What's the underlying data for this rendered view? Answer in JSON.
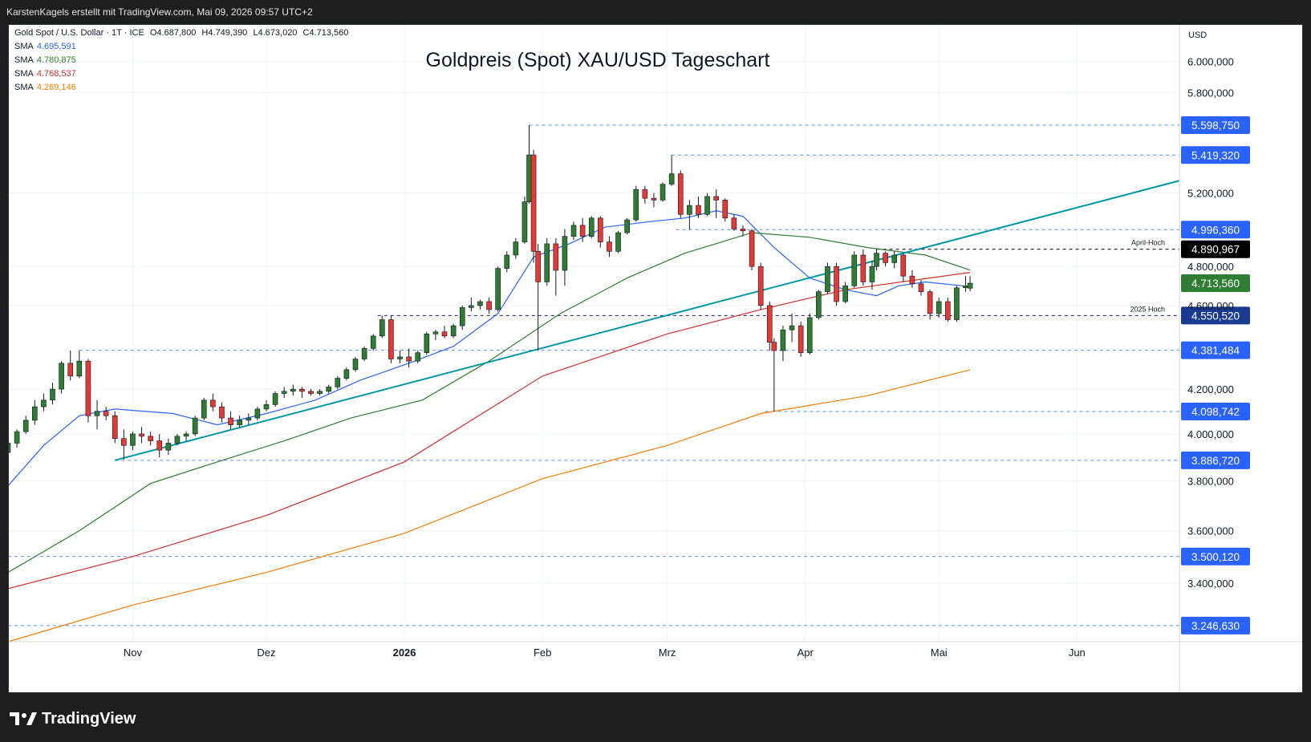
{
  "header": {
    "attribution": "KarstenKagels erstellt mit TradingView.com, Mai 09, 2026 09:57 UTC+2"
  },
  "legend": {
    "symbol_line": "Gold Spot / U.S. Dollar · 1T · ICE",
    "ohlc": {
      "o": "O4.687,800",
      "h": "H4.749,390",
      "l": "L4.673,020",
      "c": "C4.713,560"
    },
    "sma": [
      {
        "label": "SMA",
        "value": "4.695,591",
        "color": "#2962ff"
      },
      {
        "label": "SMA",
        "value": "4.780,875",
        "color": "#2e7d32"
      },
      {
        "label": "SMA",
        "value": "4.768,537",
        "color": "#d32f2f"
      },
      {
        "label": "SMA",
        "value": "4.289,146",
        "color": "#f57c00"
      }
    ]
  },
  "footer": {
    "brand": "TradingView"
  },
  "chart_data": {
    "type": "candlestick",
    "title": "Goldpreis (Spot) XAU/USD Tageschart",
    "currency": "USD",
    "y_scale": "log",
    "ylim": [
      3190,
      6250
    ],
    "y_ticks": [
      {
        "value": 3400,
        "label": "3.400,000"
      },
      {
        "value": 3600,
        "label": "3.600,000"
      },
      {
        "value": 3800,
        "label": "3.800,000"
      },
      {
        "value": 4000,
        "label": "4.000,000"
      },
      {
        "value": 4200,
        "label": "4.200,000"
      },
      {
        "value": 4600,
        "label": "4.600,000"
      },
      {
        "value": 4800,
        "label": "4.800,000"
      },
      {
        "value": 5200,
        "label": "5.200,000"
      },
      {
        "value": 5800,
        "label": "5.800,000"
      },
      {
        "value": 6000,
        "label": "6.000,000"
      }
    ],
    "x_ticks": [
      {
        "date": "2025-11-01",
        "label": "Nov",
        "bold": false
      },
      {
        "date": "2025-12-01",
        "label": "Dez",
        "bold": false
      },
      {
        "date": "2026-01-01",
        "label": "2026",
        "bold": true
      },
      {
        "date": "2026-02-01",
        "label": "Feb",
        "bold": false
      },
      {
        "date": "2026-03-01",
        "label": "Mrz",
        "bold": false
      },
      {
        "date": "2026-04-01",
        "label": "Apr",
        "bold": false
      },
      {
        "date": "2026-05-01",
        "label": "Mai",
        "bold": false
      },
      {
        "date": "2026-06-01",
        "label": "Jun",
        "bold": false
      }
    ],
    "x_range": [
      "2025-10-04",
      "2026-06-24"
    ],
    "levels": [
      {
        "value": 5598.75,
        "label": "5.598,750",
        "style": "blue",
        "start": "2026-01-29"
      },
      {
        "value": 5419.32,
        "label": "5.419,320",
        "style": "blue",
        "start": "2026-03-02"
      },
      {
        "value": 4996.36,
        "label": "4.996,360",
        "style": "blue",
        "start": "2026-03-03"
      },
      {
        "value": 4890.967,
        "label": "4.890,967",
        "style": "black",
        "note": "April-Hoch",
        "start": "2026-04-17"
      },
      {
        "value": 4713.56,
        "label": "4.713,560",
        "style": "green",
        "current": true
      },
      {
        "value": 4550.52,
        "label": "4.550,520",
        "style": "navy",
        "note": "2025 Hoch",
        "start": "2025-12-26"
      },
      {
        "value": 4381.484,
        "label": "4.381,484",
        "style": "blue",
        "start": "2025-10-20"
      },
      {
        "value": 4098.742,
        "label": "4.098,742",
        "style": "blue",
        "start": "2026-03-23"
      },
      {
        "value": 3886.72,
        "label": "3.886,720",
        "style": "blue",
        "start": "2025-10-28"
      },
      {
        "value": 3500.12,
        "label": "3.500,120",
        "style": "blue",
        "start": "2025-10-04"
      },
      {
        "value": 3246.63,
        "label": "3.246,630",
        "style": "blue",
        "start": "2025-10-04"
      }
    ],
    "trendline": {
      "from": {
        "date": "2025-10-28",
        "value": 3886.72
      },
      "to": {
        "date": "2026-06-24",
        "value": 5270
      },
      "color": "#0097a7"
    },
    "sma_lines": [
      {
        "name": "SMA 20",
        "color": "#2962ff",
        "points": [
          [
            "2025-10-04",
            3780
          ],
          [
            "2025-10-12",
            3950
          ],
          [
            "2025-10-20",
            4080
          ],
          [
            "2025-10-28",
            4110
          ],
          [
            "2025-11-10",
            4090
          ],
          [
            "2025-11-20",
            4040
          ],
          [
            "2025-12-01",
            4090
          ],
          [
            "2025-12-12",
            4150
          ],
          [
            "2025-12-22",
            4240
          ],
          [
            "2026-01-02",
            4320
          ],
          [
            "2026-01-12",
            4400
          ],
          [
            "2026-01-22",
            4560
          ],
          [
            "2026-01-30",
            4850
          ],
          [
            "2026-02-07",
            4920
          ],
          [
            "2026-02-15",
            5010
          ],
          [
            "2026-02-25",
            5040
          ],
          [
            "2026-03-05",
            5060
          ],
          [
            "2026-03-12",
            5100
          ],
          [
            "2026-03-18",
            5070
          ],
          [
            "2026-03-25",
            4900
          ],
          [
            "2026-04-02",
            4740
          ],
          [
            "2026-04-10",
            4680
          ],
          [
            "2026-04-17",
            4650
          ],
          [
            "2026-04-22",
            4700
          ],
          [
            "2026-04-28",
            4720
          ],
          [
            "2026-05-08",
            4696
          ]
        ]
      },
      {
        "name": "SMA 50",
        "color": "#2e7d32",
        "points": [
          [
            "2025-10-04",
            3440
          ],
          [
            "2025-10-20",
            3600
          ],
          [
            "2025-11-05",
            3790
          ],
          [
            "2025-11-20",
            3880
          ],
          [
            "2025-12-05",
            3970
          ],
          [
            "2025-12-20",
            4070
          ],
          [
            "2026-01-05",
            4150
          ],
          [
            "2026-01-20",
            4330
          ],
          [
            "2026-02-05",
            4560
          ],
          [
            "2026-02-20",
            4740
          ],
          [
            "2026-03-05",
            4870
          ],
          [
            "2026-03-20",
            4980
          ],
          [
            "2026-04-02",
            4955
          ],
          [
            "2026-04-15",
            4900
          ],
          [
            "2026-04-28",
            4860
          ],
          [
            "2026-05-08",
            4781
          ]
        ]
      },
      {
        "name": "SMA 100",
        "color": "#d32f2f",
        "points": [
          [
            "2025-10-04",
            3380
          ],
          [
            "2025-11-01",
            3500
          ],
          [
            "2025-12-01",
            3660
          ],
          [
            "2026-01-01",
            3880
          ],
          [
            "2026-02-01",
            4260
          ],
          [
            "2026-03-01",
            4460
          ],
          [
            "2026-03-22",
            4580
          ],
          [
            "2026-04-10",
            4680
          ],
          [
            "2026-05-08",
            4769
          ]
        ]
      },
      {
        "name": "SMA 200",
        "color": "#f57c00",
        "points": [
          [
            "2025-10-04",
            3190
          ],
          [
            "2025-11-01",
            3320
          ],
          [
            "2025-12-01",
            3440
          ],
          [
            "2026-01-01",
            3590
          ],
          [
            "2026-02-01",
            3810
          ],
          [
            "2026-03-01",
            3950
          ],
          [
            "2026-03-22",
            4090
          ],
          [
            "2026-04-15",
            4170
          ],
          [
            "2026-05-08",
            4289
          ]
        ]
      }
    ],
    "candles": [
      [
        "2025-10-04",
        3920,
        3980,
        3900,
        3960
      ],
      [
        "2025-10-06",
        3960,
        4020,
        3940,
        4010
      ],
      [
        "2025-10-08",
        4010,
        4080,
        4000,
        4060
      ],
      [
        "2025-10-10",
        4060,
        4150,
        4040,
        4120
      ],
      [
        "2025-10-12",
        4120,
        4180,
        4100,
        4150
      ],
      [
        "2025-10-14",
        4150,
        4230,
        4130,
        4200
      ],
      [
        "2025-10-16",
        4200,
        4330,
        4180,
        4320
      ],
      [
        "2025-10-18",
        4320,
        4380,
        4240,
        4260
      ],
      [
        "2025-10-20",
        4260,
        4380,
        4250,
        4330
      ],
      [
        "2025-10-22",
        4330,
        4340,
        4050,
        4080
      ],
      [
        "2025-10-24",
        4080,
        4150,
        4020,
        4100
      ],
      [
        "2025-10-26",
        4100,
        4120,
        4060,
        4080
      ],
      [
        "2025-10-28",
        4080,
        4100,
        3960,
        3980
      ],
      [
        "2025-10-30",
        3980,
        4020,
        3890,
        3950
      ],
      [
        "2025-11-01",
        3950,
        4010,
        3930,
        4000
      ],
      [
        "2025-11-03",
        4000,
        4030,
        3960,
        3990
      ],
      [
        "2025-11-05",
        3990,
        4010,
        3950,
        3970
      ],
      [
        "2025-11-07",
        3970,
        4000,
        3900,
        3930
      ],
      [
        "2025-11-09",
        3930,
        3980,
        3910,
        3960
      ],
      [
        "2025-11-11",
        3960,
        4000,
        3950,
        3990
      ],
      [
        "2025-11-13",
        3990,
        4010,
        3970,
        4000
      ],
      [
        "2025-11-15",
        4000,
        4080,
        3990,
        4070
      ],
      [
        "2025-11-17",
        4070,
        4160,
        4060,
        4150
      ],
      [
        "2025-11-19",
        4150,
        4180,
        4100,
        4120
      ],
      [
        "2025-11-21",
        4120,
        4140,
        4050,
        4070
      ],
      [
        "2025-11-23",
        4070,
        4100,
        4020,
        4040
      ],
      [
        "2025-11-25",
        4040,
        4080,
        4030,
        4060
      ],
      [
        "2025-11-27",
        4060,
        4090,
        4040,
        4070
      ],
      [
        "2025-11-29",
        4070,
        4120,
        4060,
        4110
      ],
      [
        "2025-12-01",
        4110,
        4150,
        4100,
        4130
      ],
      [
        "2025-12-03",
        4130,
        4190,
        4120,
        4180
      ],
      [
        "2025-12-05",
        4180,
        4210,
        4160,
        4190
      ],
      [
        "2025-12-07",
        4190,
        4220,
        4170,
        4200
      ],
      [
        "2025-12-09",
        4200,
        4210,
        4160,
        4190
      ],
      [
        "2025-12-11",
        4190,
        4200,
        4170,
        4180
      ],
      [
        "2025-12-13",
        4180,
        4200,
        4170,
        4190
      ],
      [
        "2025-12-15",
        4190,
        4220,
        4180,
        4210
      ],
      [
        "2025-12-17",
        4210,
        4260,
        4200,
        4250
      ],
      [
        "2025-12-19",
        4250,
        4300,
        4240,
        4290
      ],
      [
        "2025-12-21",
        4290,
        4350,
        4280,
        4340
      ],
      [
        "2025-12-23",
        4340,
        4400,
        4330,
        4390
      ],
      [
        "2025-12-25",
        4390,
        4460,
        4380,
        4450
      ],
      [
        "2025-12-27",
        4450,
        4550,
        4440,
        4530
      ],
      [
        "2025-12-29",
        4530,
        4550,
        4320,
        4340
      ],
      [
        "2025-12-31",
        4340,
        4380,
        4320,
        4350
      ],
      [
        "2026-01-02",
        4350,
        4390,
        4300,
        4330
      ],
      [
        "2026-01-04",
        4330,
        4380,
        4320,
        4370
      ],
      [
        "2026-01-06",
        4370,
        4470,
        4360,
        4460
      ],
      [
        "2026-01-08",
        4460,
        4480,
        4430,
        4470
      ],
      [
        "2026-01-10",
        4470,
        4500,
        4440,
        4450
      ],
      [
        "2026-01-12",
        4450,
        4510,
        4440,
        4500
      ],
      [
        "2026-01-14",
        4500,
        4600,
        4480,
        4590
      ],
      [
        "2026-01-16",
        4590,
        4640,
        4570,
        4600
      ],
      [
        "2026-01-18",
        4600,
        4630,
        4580,
        4620
      ],
      [
        "2026-01-20",
        4620,
        4640,
        4560,
        4580
      ],
      [
        "2026-01-22",
        4580,
        4800,
        4570,
        4790
      ],
      [
        "2026-01-24",
        4790,
        4880,
        4770,
        4860
      ],
      [
        "2026-01-26",
        4860,
        4950,
        4840,
        4930
      ],
      [
        "2026-01-28",
        4930,
        5180,
        4920,
        5150
      ],
      [
        "2026-01-29",
        5150,
        5598.75,
        5140,
        5420
      ],
      [
        "2026-01-30",
        5420,
        5450,
        4820,
        4880
      ],
      [
        "2026-01-31",
        4880,
        4920,
        4380,
        4720
      ],
      [
        "2026-02-02",
        4720,
        4950,
        4700,
        4920
      ],
      [
        "2026-02-04",
        4920,
        4950,
        4650,
        4780
      ],
      [
        "2026-02-06",
        4780,
        5000,
        4700,
        4960
      ],
      [
        "2026-02-08",
        4960,
        5040,
        4940,
        5020
      ],
      [
        "2026-02-10",
        5020,
        5060,
        4930,
        4960
      ],
      [
        "2026-02-12",
        4960,
        5070,
        4950,
        5060
      ],
      [
        "2026-02-14",
        5060,
        5070,
        4900,
        4930
      ],
      [
        "2026-02-16",
        4930,
        4960,
        4850,
        4880
      ],
      [
        "2026-02-18",
        4880,
        4990,
        4870,
        4980
      ],
      [
        "2026-02-20",
        4980,
        5060,
        4970,
        5050
      ],
      [
        "2026-02-22",
        5050,
        5240,
        5040,
        5220
      ],
      [
        "2026-02-24",
        5220,
        5240,
        5140,
        5170
      ],
      [
        "2026-02-26",
        5170,
        5200,
        5120,
        5160
      ],
      [
        "2026-02-28",
        5160,
        5260,
        5150,
        5250
      ],
      [
        "2026-03-02",
        5250,
        5419.32,
        5240,
        5310
      ],
      [
        "2026-03-04",
        5310,
        5330,
        5060,
        5080
      ],
      [
        "2026-03-06",
        5080,
        5160,
        4996.36,
        5130
      ],
      [
        "2026-03-08",
        5130,
        5180,
        5060,
        5080
      ],
      [
        "2026-03-10",
        5080,
        5200,
        5070,
        5180
      ],
      [
        "2026-03-12",
        5180,
        5220,
        5060,
        5160
      ],
      [
        "2026-03-14",
        5160,
        5170,
        5040,
        5060
      ],
      [
        "2026-03-16",
        5060,
        5080,
        4990,
        5000
      ],
      [
        "2026-03-18",
        5000,
        5020,
        4960,
        4990
      ],
      [
        "2026-03-20",
        4990,
        5000,
        4780,
        4800
      ],
      [
        "2026-03-22",
        4800,
        4820,
        4580,
        4600
      ],
      [
        "2026-03-24",
        4600,
        4620,
        4380,
        4420
      ],
      [
        "2026-03-25",
        4420,
        4440,
        4098.742,
        4380
      ],
      [
        "2026-03-27",
        4380,
        4500,
        4330,
        4480
      ],
      [
        "2026-03-29",
        4480,
        4560,
        4420,
        4500
      ],
      [
        "2026-03-31",
        4500,
        4520,
        4350,
        4370
      ],
      [
        "2026-04-02",
        4370,
        4560,
        4360,
        4540
      ],
      [
        "2026-04-04",
        4540,
        4680,
        4530,
        4670
      ],
      [
        "2026-04-06",
        4670,
        4820,
        4660,
        4800
      ],
      [
        "2026-04-08",
        4800,
        4820,
        4600,
        4620
      ],
      [
        "2026-04-10",
        4620,
        4720,
        4610,
        4700
      ],
      [
        "2026-04-12",
        4700,
        4880,
        4690,
        4860
      ],
      [
        "2026-04-14",
        4860,
        4890,
        4700,
        4720
      ],
      [
        "2026-04-16",
        4720,
        4830,
        4680,
        4800
      ],
      [
        "2026-04-17",
        4800,
        4890.967,
        4780,
        4870
      ],
      [
        "2026-04-19",
        4870,
        4880,
        4800,
        4820
      ],
      [
        "2026-04-21",
        4820,
        4880,
        4790,
        4860
      ],
      [
        "2026-04-23",
        4860,
        4870,
        4720,
        4750
      ],
      [
        "2026-04-25",
        4750,
        4780,
        4690,
        4710
      ],
      [
        "2026-04-27",
        4710,
        4730,
        4650,
        4670
      ],
      [
        "2026-04-29",
        4670,
        4680,
        4530,
        4560
      ],
      [
        "2026-05-01",
        4560,
        4640,
        4540,
        4620
      ],
      [
        "2026-05-03",
        4620,
        4640,
        4520,
        4530
      ],
      [
        "2026-05-05",
        4530,
        4700,
        4520,
        4690
      ],
      [
        "2026-05-07",
        4690,
        4750,
        4670,
        4700
      ],
      [
        "2026-05-08",
        4687.8,
        4749.39,
        4673.02,
        4713.56
      ]
    ]
  }
}
